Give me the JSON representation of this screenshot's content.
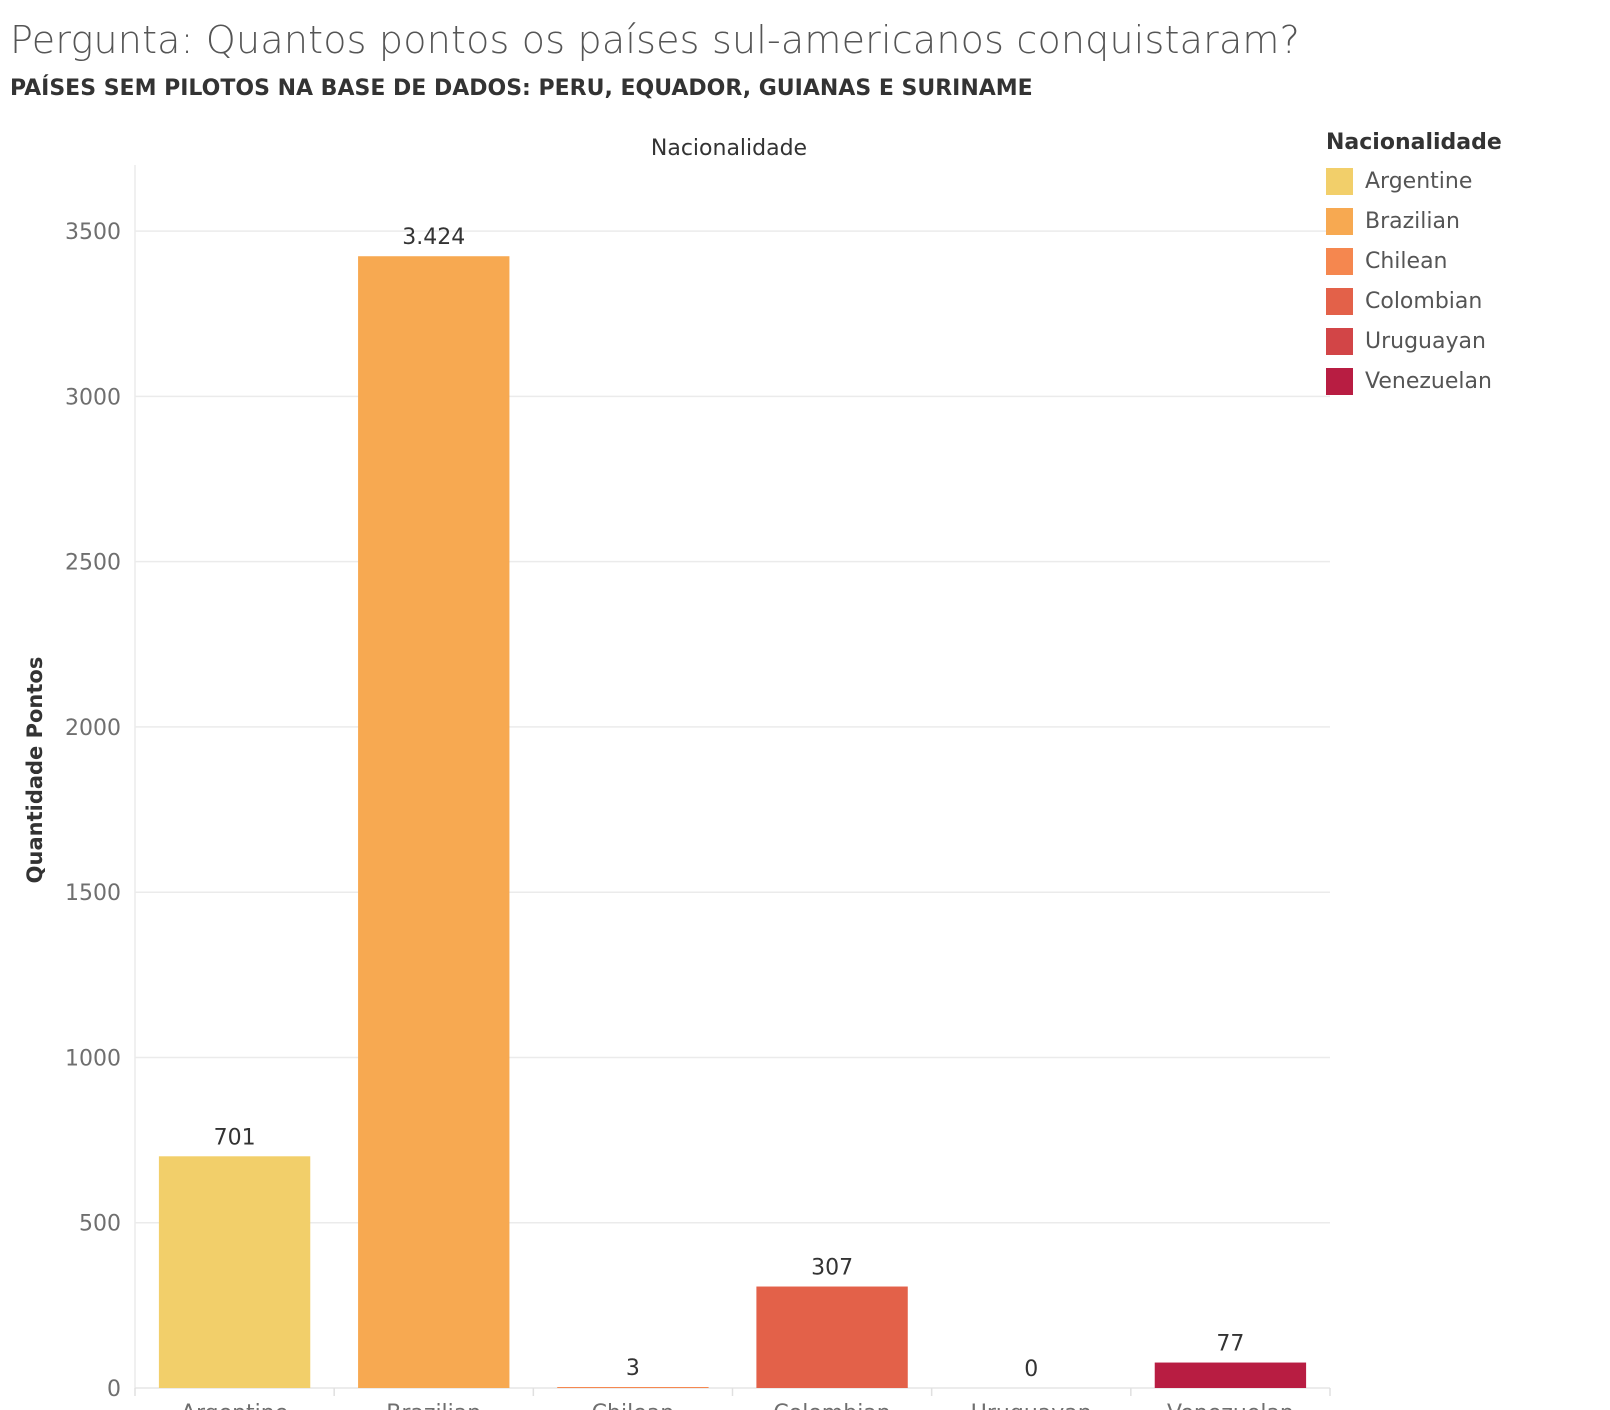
{
  "title": "Pergunta: Quantos pontos os países sul-americanos conquistaram?",
  "subtitle": "PAÍSES SEM PILOTOS NA BASE DE DADOS: PERU, EQUADOR, GUIANAS E SURINAME",
  "legend": {
    "title": "Nacionalidade",
    "items": [
      {
        "label": "Argentine",
        "color": "#f2cf6a"
      },
      {
        "label": "Brazilian",
        "color": "#f7a951"
      },
      {
        "label": "Chilean",
        "color": "#f5874f"
      },
      {
        "label": "Colombian",
        "color": "#e36149"
      },
      {
        "label": "Uruguayan",
        "color": "#d24547"
      },
      {
        "label": "Venezuelan",
        "color": "#b81d42"
      }
    ]
  },
  "chart_data": {
    "type": "bar",
    "header_label": "Nacionalidade",
    "ylabel": "Quantidade Pontos",
    "categories": [
      "Argentine",
      "Brazilian",
      "Chilean",
      "Colombian",
      "Uruguayan",
      "Venezuelan"
    ],
    "values": [
      701,
      3424,
      3,
      307,
      0,
      77
    ],
    "data_labels": [
      "701",
      "3.424",
      "3",
      "307",
      "0",
      "77"
    ],
    "colors": [
      "#f2cf6a",
      "#f7a951",
      "#f5874f",
      "#e36149",
      "#d24547",
      "#b81d42"
    ],
    "ylim": [
      0,
      3700
    ],
    "yticks": [
      0,
      500,
      1000,
      1500,
      2000,
      2500,
      3000,
      3500
    ],
    "grid": true,
    "legend_position": "right"
  }
}
